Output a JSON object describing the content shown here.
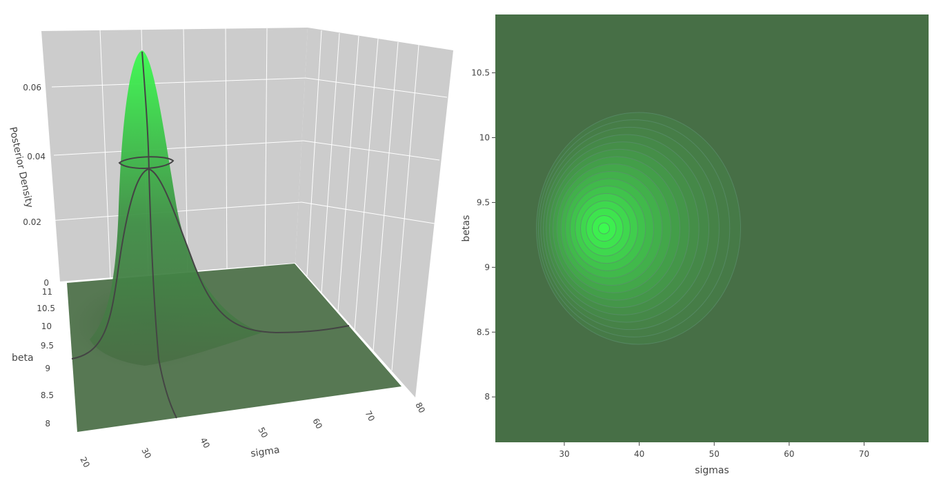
{
  "chart_data": [
    {
      "type": "surface",
      "xlabel": "sigma",
      "ylabel": "beta",
      "zlabel": "Posterior Density",
      "x_ticks": [
        "20",
        "30",
        "40",
        "50",
        "60",
        "70",
        "80"
      ],
      "y_ticks": [
        "8",
        "8.5",
        "9",
        "9.5",
        "10",
        "10.5",
        "11"
      ],
      "z_ticks": [
        "0",
        "0.02",
        "0.04",
        "0.06"
      ],
      "xlim": [
        18,
        82
      ],
      "ylim": [
        7.8,
        11.2
      ],
      "zlim": [
        0,
        0.072
      ],
      "peak": {
        "sigma": 35.3,
        "beta": 9.3,
        "density": 0.07
      },
      "colors": {
        "low": "#4a6e46",
        "high": "#3cfb50",
        "pane": "#cccccc",
        "grid": "#ffffff",
        "curve": "#444444"
      }
    },
    {
      "type": "contour",
      "xlabel": "sigmas",
      "ylabel": "betas",
      "x_ticks": [
        "30",
        "40",
        "50",
        "60",
        "70"
      ],
      "y_ticks": [
        "8",
        "8.5",
        "9",
        "9.5",
        "10",
        "10.5"
      ],
      "xlim": [
        20.8,
        78.6
      ],
      "ylim": [
        7.65,
        10.95
      ],
      "center": {
        "sigma": 35.3,
        "beta": 9.3
      },
      "colors": {
        "background": "#476f46",
        "center": "#3cfb50",
        "line": "#5b8f6e"
      }
    }
  ]
}
